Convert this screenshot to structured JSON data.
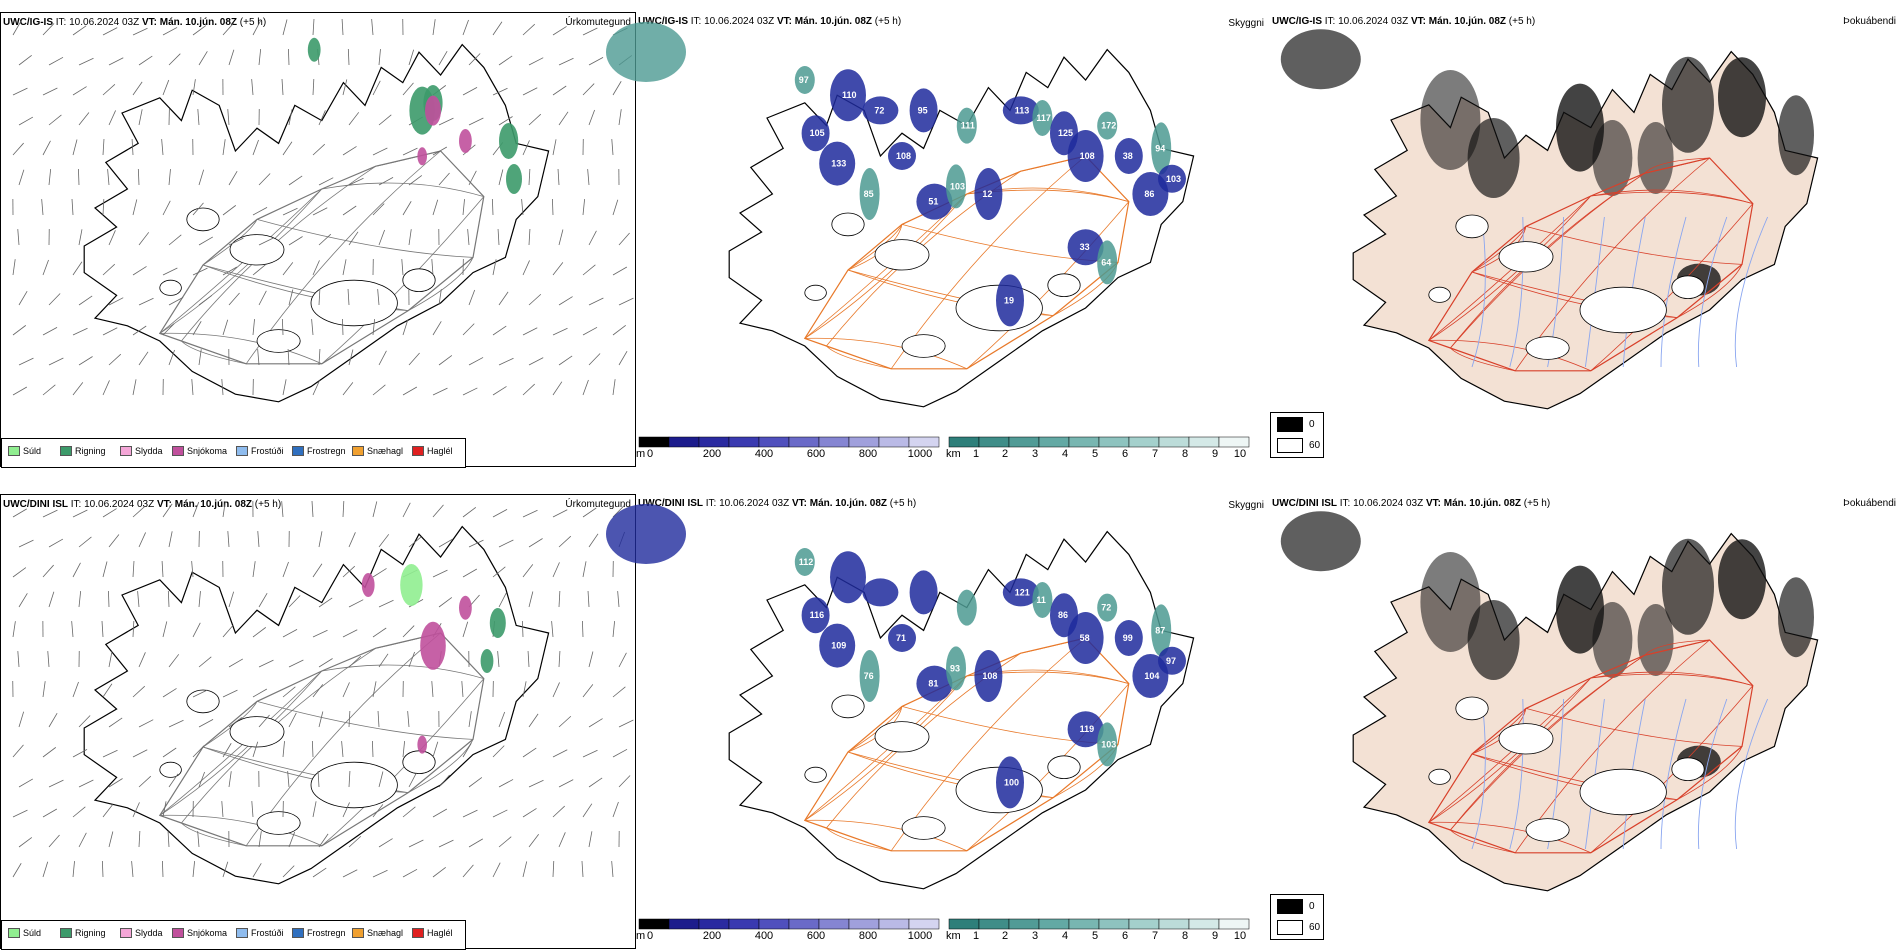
{
  "rows": [
    {
      "model": "UWC/IG-IS",
      "it": "IT: 10.06.2024 03Z",
      "vt_label": "VT:",
      "vt_value": "Mán. 10.jún. 08Z",
      "lead": "(+5 h)",
      "precip_title": "Úrkomutegund",
      "cloud_title": "Skyggni",
      "fog_title": "Þokuábendi",
      "cloud_labels": [
        "97",
        "105",
        "133",
        "85",
        "108",
        "51",
        "103",
        "12",
        "113",
        "117",
        "125",
        "108",
        "172",
        "38",
        "86",
        "94",
        "103",
        "33",
        "64",
        "19",
        "72",
        "111",
        "95",
        "110"
      ]
    },
    {
      "model": "UWC/DINI ISL",
      "it": "IT: 10.06.2024 03Z",
      "vt_label": "VT:",
      "vt_value": "Mán. 10.jún. 08Z",
      "lead": "(+5 h)",
      "precip_title": "Úrkomutegund",
      "cloud_title": "Skyggni",
      "fog_title": "Þokuábendi",
      "cloud_labels": [
        "112",
        "116",
        "109",
        "76",
        "71",
        "81",
        "93",
        "108",
        "121",
        "11",
        "86",
        "58",
        "72",
        "99",
        "104",
        "87",
        "97",
        "119",
        "103",
        "100"
      ]
    }
  ],
  "precip_legend": [
    {
      "label": "Súld",
      "color": "#90ee90"
    },
    {
      "label": "Rigning",
      "color": "#3c9a6a"
    },
    {
      "label": "Slydda",
      "color": "#f4a6d7"
    },
    {
      "label": "Snjókoma",
      "color": "#c0509c"
    },
    {
      "label": "Frostúði",
      "color": "#8fbcee"
    },
    {
      "label": "Frostregn",
      "color": "#2f6fbf"
    },
    {
      "label": "Snæhagl",
      "color": "#f0a030"
    },
    {
      "label": "Haglél",
      "color": "#e02020"
    }
  ],
  "base_colorbar": {
    "unit": "m",
    "ticks": [
      "0",
      "200",
      "400",
      "600",
      "800",
      "1000"
    ],
    "colors": [
      "#000000",
      "#1c1c8c",
      "#2a2aa0",
      "#3a3ab0",
      "#5050bd",
      "#6a6ac8",
      "#8585d2",
      "#a0a0dc",
      "#babae6",
      "#d4d4f0"
    ]
  },
  "top_colorbar": {
    "unit": "km",
    "ticks": [
      "1",
      "2",
      "3",
      "4",
      "5",
      "6",
      "7",
      "8",
      "9",
      "10"
    ],
    "colors": [
      "#2e7f7a",
      "#3f8d88",
      "#519b96",
      "#63a9a4",
      "#78b6b1",
      "#8ec3bf",
      "#a4d0cc",
      "#bcdcd9",
      "#d4e9e7",
      "#eef6f5"
    ]
  },
  "fog_legend": [
    {
      "label": "0",
      "color": "#000000"
    },
    {
      "label": "60",
      "color": "#ffffff"
    }
  ],
  "colors": {
    "road": "#e8792a",
    "fog_road": "#d8402a",
    "land_tint": "#f3e1d4",
    "river": "#8aa6f0",
    "cloud_blue": "#1f2a9c",
    "cloud_teal": "#4c9a92"
  }
}
